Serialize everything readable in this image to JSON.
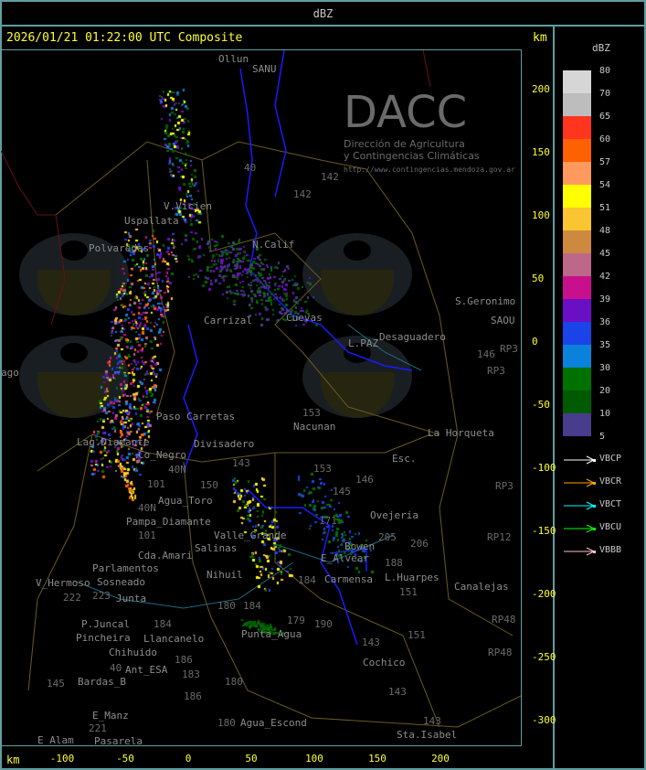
{
  "header": {
    "title": "dBZ"
  },
  "panel": {
    "title": "2026/01/21 01:22:00 UTC Composite",
    "unit_top": "km",
    "unit_bottom": "km"
  },
  "y_ticks": [
    "200",
    "150",
    "100",
    "50",
    "0",
    "-50",
    "-100",
    "-150",
    "-200",
    "-250",
    "-300"
  ],
  "x_ticks": [
    "-100",
    "-50",
    "0",
    "50",
    "100",
    "150",
    "200"
  ],
  "legend": {
    "title": "dBZ",
    "bins": [
      {
        "label": "80",
        "color": "#d6d6d6"
      },
      {
        "label": "70",
        "color": "#bdbdbd"
      },
      {
        "label": "65",
        "color": "#ff3520"
      },
      {
        "label": "60",
        "color": "#ff6000"
      },
      {
        "label": "57",
        "color": "#ff9a5e"
      },
      {
        "label": "54",
        "color": "#ffff00"
      },
      {
        "label": "51",
        "color": "#fbc531"
      },
      {
        "label": "48",
        "color": "#cd8940"
      },
      {
        "label": "45",
        "color": "#bd6888"
      },
      {
        "label": "42",
        "color": "#c8108c"
      },
      {
        "label": "39",
        "color": "#6a10c4"
      },
      {
        "label": "36",
        "color": "#1a44e8"
      },
      {
        "label": "35",
        "color": "#0a82dc"
      },
      {
        "label": "30",
        "color": "#007000"
      },
      {
        "label": "20",
        "color": "#005a00"
      },
      {
        "label": "10",
        "color": "#483c8c"
      },
      {
        "label": "5",
        "color": ""
      }
    ],
    "radars": [
      {
        "label": "VBCP",
        "color": "#ffffff"
      },
      {
        "label": "VBCR",
        "color": "#ffa500"
      },
      {
        "label": "VBCT",
        "color": "#00ffff"
      },
      {
        "label": "VBCU",
        "color": "#00ff00"
      },
      {
        "label": "VBBB",
        "color": "#ffc0cb"
      }
    ]
  },
  "watermark": {
    "brand": "DACC",
    "line1": "Dirección de Agricultura",
    "line2": "y Contingencias Climáticas",
    "url": "http://www.contingencias.mendoza.gov.ar"
  },
  "places": [
    "Ollun",
    "SANU",
    "V.Vicien",
    "Uspallata",
    "Polvaredas",
    "N.Calif",
    "Cuevas",
    "Carrizal",
    "Desaguadero",
    "S.Geronimo",
    "SAOU",
    "L.PAZ",
    "Nacunan",
    "La Horqueta",
    "Paso Carretas",
    "Lag.Diamante",
    "Co_Negro",
    "Divisadero",
    "Esc.",
    "Agua_Toro",
    "Pampa_Diamante",
    "Valle_Grande",
    "Ovejeria",
    "Salinas",
    "Cda.Amari",
    "Parlamentos",
    "Sosneado",
    "Nihuil",
    "V_Hermoso",
    "Junta",
    "P.Juncal",
    "Pincheira",
    "Llancanelo",
    "E_Alvear",
    "Bowen",
    "L.Huarpes",
    "Carmensa",
    "Canalejas",
    "Chihuido",
    "Ant_ESA",
    "Punta_Agua",
    "Cochico",
    "Bardas_B",
    "E_Manz",
    "Agua_Escond",
    "Sta.Isabel",
    "E_Alam",
    "Pasarela",
    "ago"
  ],
  "routes": [
    "40",
    "142",
    "142",
    "153",
    "143",
    "153",
    "146",
    "150",
    "101",
    "40N",
    "145",
    "171",
    "205",
    "206",
    "188",
    "184",
    "151",
    "180",
    "184",
    "179",
    "190",
    "151",
    "143",
    "184",
    "222",
    "223",
    "145",
    "183",
    "186",
    "180",
    "186",
    "180",
    "143",
    "143",
    "221",
    "40",
    "RP3",
    "RP3",
    "RP3",
    "RP12",
    "RP48",
    "RP48",
    "146",
    "40N",
    "101"
  ]
}
